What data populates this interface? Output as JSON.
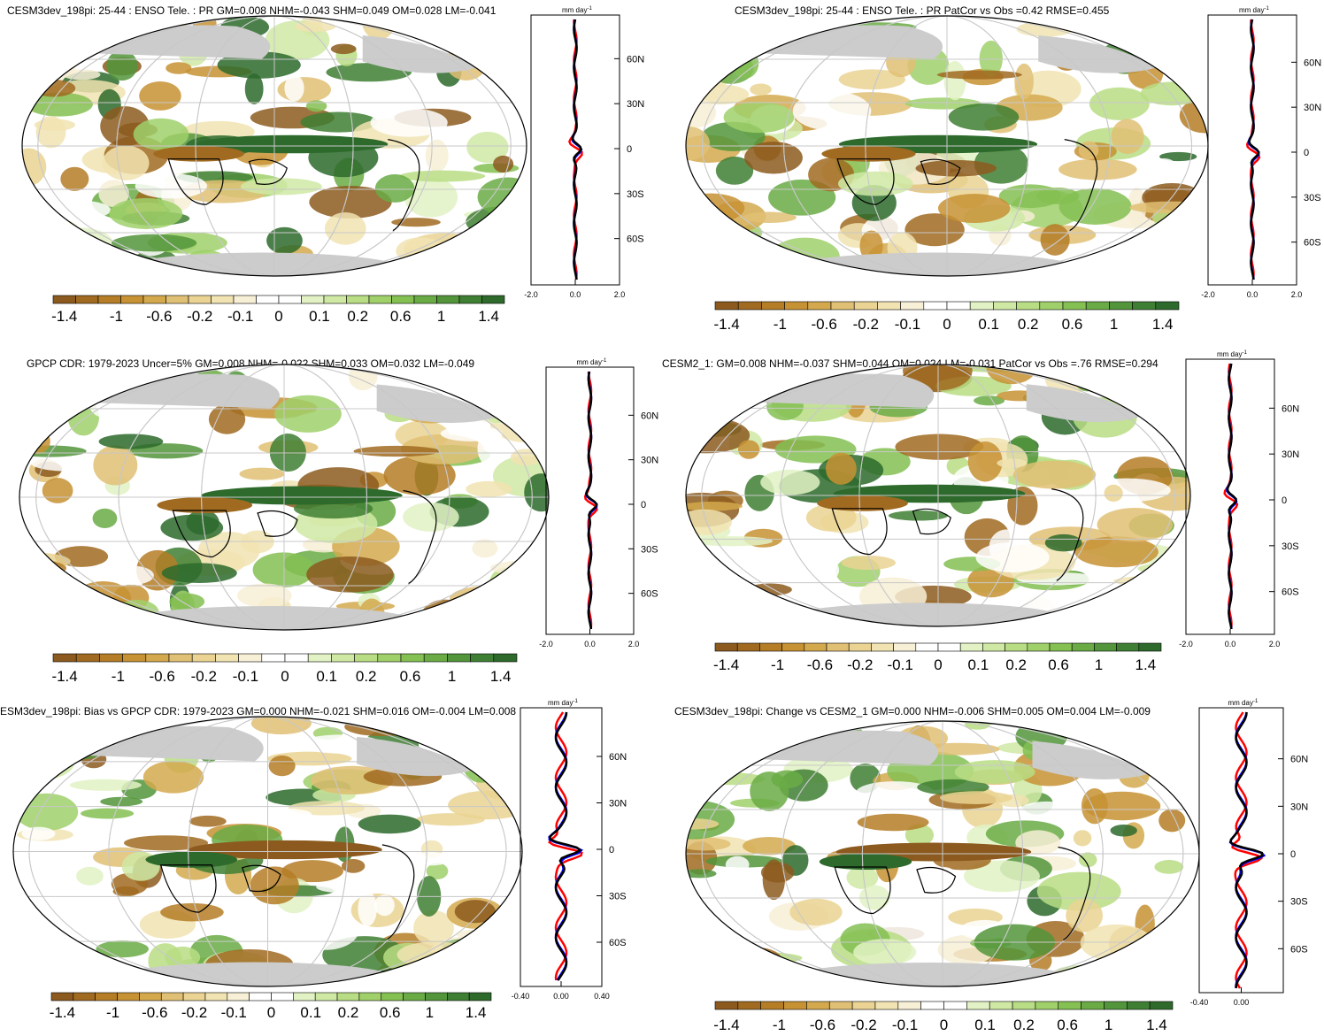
{
  "units": "mm day",
  "units_exp": "-1",
  "colorbar": {
    "labels": [
      "-1.4",
      "-1",
      "-0.6",
      "-0.2",
      "-0.1",
      "0",
      "0.1",
      "0.2",
      "0.6",
      "1",
      "1.4"
    ],
    "colors": [
      "#8c5a1e",
      "#a06a20",
      "#b47d26",
      "#c79234",
      "#d4a94e",
      "#e0c074",
      "#ead393",
      "#f1e3b2",
      "#f7efd6",
      "#ffffff",
      "#ffffff",
      "#e2f2c4",
      "#cfe9a4",
      "#b8dd84",
      "#9fd06a",
      "#84c052",
      "#6aab45",
      "#52953b",
      "#3f7f33",
      "#2d6a2b"
    ]
  },
  "lat_labels": [
    "60N",
    "30N",
    "0",
    "30S",
    "60S"
  ],
  "panels": [
    {
      "title": "CESM3dev_198pi: 25-44 : ENSO Tele. : PR GM=0.008 NHM=-0.043 SHM=0.049 OM=0.028 LM=-0.041",
      "xticks": [
        "-2.0",
        "0.0",
        "2.0"
      ]
    },
    {
      "title": "CESM3dev_198pi: 25-44 : ENSO Tele. : PR PatCor vs Obs =0.42 RMSE=0.455",
      "xticks": [
        "-2.0",
        "0.0",
        "2.0"
      ]
    },
    {
      "title": "GPCP CDR: 1979-2023 Uncer=5% GM=0.008 NHM=-0.022 SHM=0.033 OM=0.032 LM=-0.049",
      "xticks": [
        "-2.0",
        "0.0",
        "2.0"
      ]
    },
    {
      "title": "CESM2_1: GM=0.008 NHM=-0.037 SHM=0.044 OM=0.024 LM=-0.031 PatCor vs Obs =.76 RMSE=0.294",
      "xticks": [
        "-2.0",
        "0.0",
        "2.0"
      ]
    },
    {
      "title": "ESM3dev_198pi: Bias vs GPCP CDR: 1979-2023 GM=0.000 NHM=-0.021 SHM=0.016 OM=-0.004 LM=0.008",
      "xticks": [
        "-0.40",
        "0.00",
        "0.40"
      ]
    },
    {
      "title": "CESM3dev_198pi: Change vs CESM2_1 GM=0.000 NHM=-0.006 SHM=0.005 OM=0.004 LM=-0.009",
      "xticks": [
        "-0.40",
        "0.00"
      ]
    }
  ],
  "colors": {
    "land_mask": "#cccccc",
    "coast": "#000000",
    "grid": "#c8c8c8",
    "line_red": "#ff0000",
    "line_blue": "#0000ff",
    "line_black": "#000000"
  }
}
